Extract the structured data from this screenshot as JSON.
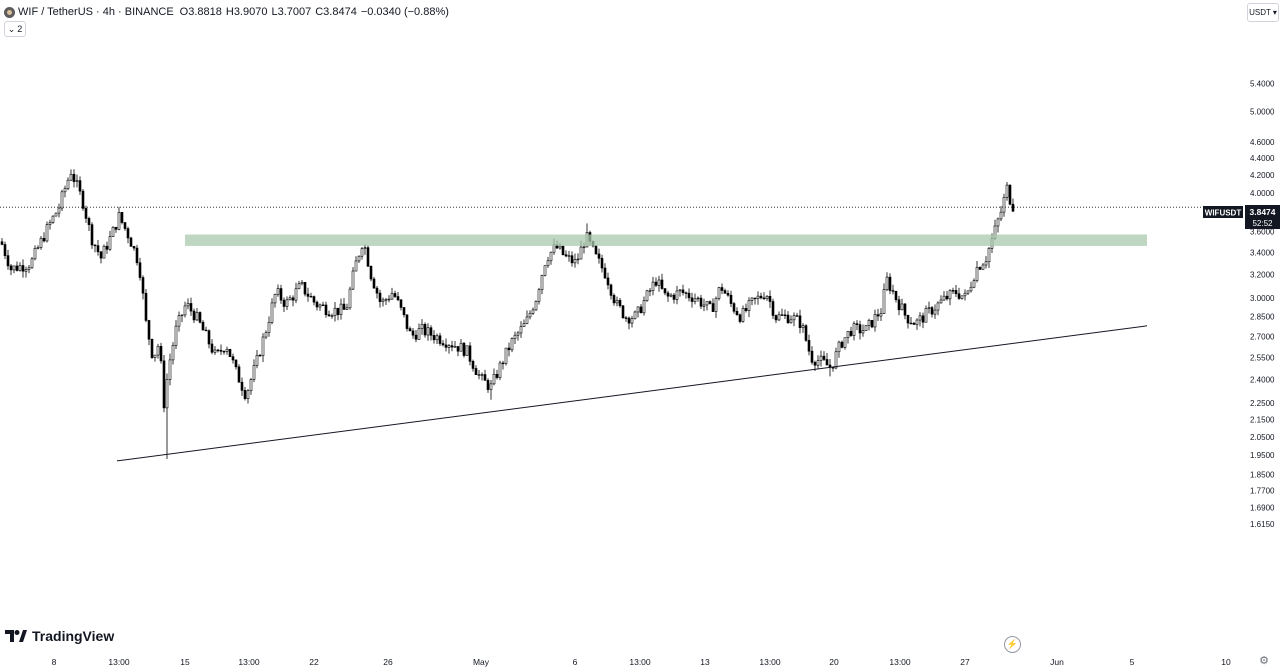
{
  "header": {
    "symbol": "WIF / TetherUS · 4h · BINANCE",
    "open": "O3.8818",
    "high": "H3.9070",
    "low": "L3.7007",
    "close": "C3.8474",
    "change": "−0.0340 (−0.88%)",
    "collapse_label": "2"
  },
  "currency_button": "USDT",
  "price_tag": {
    "symbol": "WIFUSDT",
    "price": "3.8474",
    "countdown": "52:52"
  },
  "brand": "TradingView",
  "colors": {
    "up": "#ffffff",
    "wick": "#000000",
    "zone": "#a9c9ad",
    "price_tag_bg": "#131722"
  },
  "chart_data": {
    "type": "candlestick",
    "y_scale": "log",
    "y_ticks": [
      "5.4000",
      "5.0000",
      "4.6000",
      "4.4000",
      "4.2000",
      "4.0000",
      "3.6000",
      "3.4000",
      "3.2000",
      "3.0000",
      "2.8500",
      "2.7000",
      "2.5500",
      "2.4000",
      "2.2500",
      "2.1500",
      "2.0500",
      "1.9500",
      "1.8500",
      "1.7700",
      "1.6900",
      "1.6150"
    ],
    "x_ticks": [
      "8",
      "13:00",
      "15",
      "13:00",
      "22",
      "26",
      "May",
      "6",
      "13:00",
      "13",
      "13:00",
      "20",
      "13:00",
      "27",
      "Jun",
      "5",
      "10"
    ],
    "resistance_zone": {
      "low": 3.46,
      "high": 3.57
    },
    "ascending_trendline": {
      "start": 1.92,
      "end": 2.78
    },
    "last_price": 3.8474,
    "path": [
      {
        "x": 0,
        "p": 3.5
      },
      {
        "x": 10,
        "p": 3.25
      },
      {
        "x": 30,
        "p": 3.3
      },
      {
        "x": 45,
        "p": 3.6
      },
      {
        "x": 58,
        "p": 3.85
      },
      {
        "x": 70,
        "p": 4.25
      },
      {
        "x": 75,
        "p": 4.1
      },
      {
        "x": 82,
        "p": 3.9
      },
      {
        "x": 90,
        "p": 3.55
      },
      {
        "x": 100,
        "p": 3.35
      },
      {
        "x": 110,
        "p": 3.55
      },
      {
        "x": 118,
        "p": 3.75
      },
      {
        "x": 128,
        "p": 3.55
      },
      {
        "x": 138,
        "p": 3.3
      },
      {
        "x": 145,
        "p": 2.8
      },
      {
        "x": 152,
        "p": 2.55
      },
      {
        "x": 158,
        "p": 2.65
      },
      {
        "x": 163,
        "p": 2.25
      },
      {
        "x": 168,
        "p": 2.5
      },
      {
        "x": 175,
        "p": 2.75
      },
      {
        "x": 185,
        "p": 2.95
      },
      {
        "x": 195,
        "p": 2.85
      },
      {
        "x": 205,
        "p": 2.7
      },
      {
        "x": 215,
        "p": 2.55
      },
      {
        "x": 225,
        "p": 2.65
      },
      {
        "x": 235,
        "p": 2.45
      },
      {
        "x": 245,
        "p": 2.3
      },
      {
        "x": 255,
        "p": 2.5
      },
      {
        "x": 265,
        "p": 2.75
      },
      {
        "x": 275,
        "p": 3.05
      },
      {
        "x": 285,
        "p": 2.95
      },
      {
        "x": 300,
        "p": 3.1
      },
      {
        "x": 315,
        "p": 2.95
      },
      {
        "x": 330,
        "p": 2.9
      },
      {
        "x": 345,
        "p": 2.9
      },
      {
        "x": 355,
        "p": 3.3
      },
      {
        "x": 362,
        "p": 3.52
      },
      {
        "x": 370,
        "p": 3.2
      },
      {
        "x": 380,
        "p": 2.95
      },
      {
        "x": 392,
        "p": 3.05
      },
      {
        "x": 400,
        "p": 2.9
      },
      {
        "x": 410,
        "p": 2.7
      },
      {
        "x": 420,
        "p": 2.75
      },
      {
        "x": 435,
        "p": 2.7
      },
      {
        "x": 450,
        "p": 2.65
      },
      {
        "x": 465,
        "p": 2.6
      },
      {
        "x": 480,
        "p": 2.4
      },
      {
        "x": 490,
        "p": 2.35
      },
      {
        "x": 500,
        "p": 2.5
      },
      {
        "x": 510,
        "p": 2.65
      },
      {
        "x": 525,
        "p": 2.8
      },
      {
        "x": 535,
        "p": 3.0
      },
      {
        "x": 545,
        "p": 3.35
      },
      {
        "x": 555,
        "p": 3.45
      },
      {
        "x": 565,
        "p": 3.35
      },
      {
        "x": 575,
        "p": 3.3
      },
      {
        "x": 585,
        "p": 3.55
      },
      {
        "x": 595,
        "p": 3.35
      },
      {
        "x": 605,
        "p": 3.2
      },
      {
        "x": 615,
        "p": 2.95
      },
      {
        "x": 625,
        "p": 2.85
      },
      {
        "x": 635,
        "p": 2.85
      },
      {
        "x": 645,
        "p": 3.0
      },
      {
        "x": 655,
        "p": 3.15
      },
      {
        "x": 665,
        "p": 3.0
      },
      {
        "x": 680,
        "p": 3.05
      },
      {
        "x": 695,
        "p": 3.0
      },
      {
        "x": 710,
        "p": 2.9
      },
      {
        "x": 720,
        "p": 3.1
      },
      {
        "x": 730,
        "p": 2.95
      },
      {
        "x": 740,
        "p": 2.85
      },
      {
        "x": 750,
        "p": 2.95
      },
      {
        "x": 765,
        "p": 3.05
      },
      {
        "x": 775,
        "p": 2.85
      },
      {
        "x": 790,
        "p": 2.85
      },
      {
        "x": 800,
        "p": 2.8
      },
      {
        "x": 810,
        "p": 2.55
      },
      {
        "x": 820,
        "p": 2.52
      },
      {
        "x": 830,
        "p": 2.48
      },
      {
        "x": 840,
        "p": 2.65
      },
      {
        "x": 850,
        "p": 2.75
      },
      {
        "x": 865,
        "p": 2.75
      },
      {
        "x": 880,
        "p": 2.9
      },
      {
        "x": 886,
        "p": 3.15
      },
      {
        "x": 895,
        "p": 3.0
      },
      {
        "x": 905,
        "p": 2.85
      },
      {
        "x": 915,
        "p": 2.8
      },
      {
        "x": 930,
        "p": 2.9
      },
      {
        "x": 945,
        "p": 3.0
      },
      {
        "x": 955,
        "p": 3.05
      },
      {
        "x": 965,
        "p": 3.0
      },
      {
        "x": 975,
        "p": 3.25
      },
      {
        "x": 985,
        "p": 3.35
      },
      {
        "x": 992,
        "p": 3.55
      },
      {
        "x": 1000,
        "p": 3.8
      },
      {
        "x": 1006,
        "p": 4.05
      },
      {
        "x": 1010,
        "p": 3.9
      },
      {
        "x": 1013,
        "p": 3.85
      }
    ]
  }
}
